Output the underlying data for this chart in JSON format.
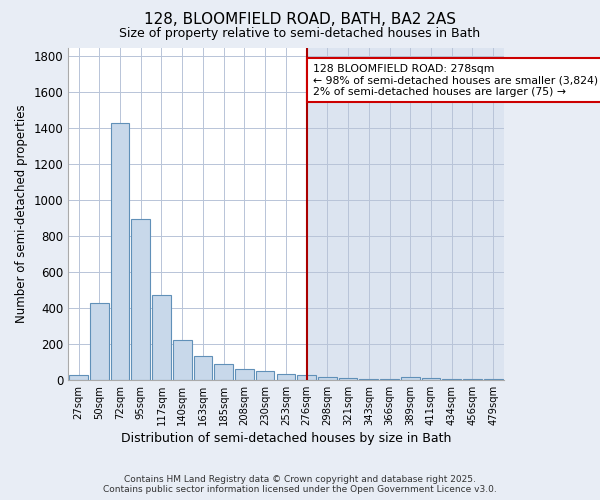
{
  "title": "128, BLOOMFIELD ROAD, BATH, BA2 2AS",
  "subtitle": "Size of property relative to semi-detached houses in Bath",
  "xlabel": "Distribution of semi-detached houses by size in Bath",
  "ylabel": "Number of semi-detached properties",
  "bar_color": "#c8d8ea",
  "bar_edgecolor": "#6090b8",
  "vline_color": "#aa0000",
  "annotation_title": "128 BLOOMFIELD ROAD: 278sqm",
  "annotation_line2": "← 98% of semi-detached houses are smaller (3,824)",
  "annotation_line3": "2% of semi-detached houses are larger (75) →",
  "footer_line1": "Contains HM Land Registry data © Crown copyright and database right 2025.",
  "footer_line2": "Contains public sector information licensed under the Open Government Licence v3.0.",
  "categories": [
    "27sqm",
    "50sqm",
    "72sqm",
    "95sqm",
    "117sqm",
    "140sqm",
    "163sqm",
    "185sqm",
    "208sqm",
    "230sqm",
    "253sqm",
    "276sqm",
    "298sqm",
    "321sqm",
    "343sqm",
    "366sqm",
    "389sqm",
    "411sqm",
    "434sqm",
    "456sqm",
    "479sqm"
  ],
  "values": [
    25,
    425,
    1430,
    895,
    470,
    220,
    135,
    90,
    60,
    47,
    32,
    25,
    18,
    8,
    3,
    2,
    15,
    8,
    4,
    2,
    2
  ],
  "background_color": "#e8edf5",
  "plot_bg_color_left": "#ffffff",
  "plot_bg_color_right": "#dde4f0",
  "ylim": [
    0,
    1850
  ],
  "yticks": [
    0,
    200,
    400,
    600,
    800,
    1000,
    1200,
    1400,
    1600,
    1800
  ],
  "vline_idx": 11
}
